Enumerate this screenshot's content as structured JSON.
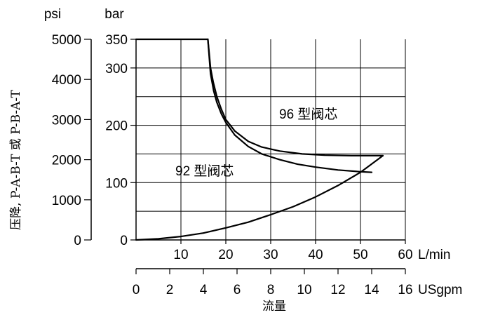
{
  "chart_data": {
    "type": "line",
    "units": {
      "psi": "psi",
      "bar": "bar",
      "lmin": "L/min",
      "usgpm": "USgpm"
    },
    "ylabel": "压降, P-A-B-T 或 P-B-A-T",
    "xlabel": "流量",
    "psi_ticks": [
      "5000",
      "4000",
      "3000",
      "2000",
      "1000",
      "0"
    ],
    "bar_ticks": [
      "350",
      "300",
      "200",
      "100",
      "0"
    ],
    "lmin_ticks": [
      "10",
      "20",
      "30",
      "40",
      "50",
      "60"
    ],
    "usgpm_ticks": [
      "0",
      "2",
      "4",
      "6",
      "8",
      "10",
      "12",
      "14",
      "16"
    ],
    "xlim_lmin": [
      0,
      60
    ],
    "ylim_bar": [
      0,
      350
    ],
    "grid": true,
    "series": [
      {
        "name": "96 型阀芯",
        "x": [
          16,
          16.6,
          17.2,
          18,
          19,
          20,
          22,
          25,
          28,
          32,
          37,
          42,
          48,
          55
        ],
        "y": [
          350,
          300,
          275,
          250,
          228,
          210,
          190,
          172,
          162,
          155,
          150,
          148,
          147,
          147
        ]
      },
      {
        "name": "92 型阀芯",
        "x": [
          16,
          16.6,
          17.3,
          18,
          19,
          20,
          22,
          25,
          28,
          32,
          36,
          40,
          45,
          50,
          52.5
        ],
        "y": [
          350,
          290,
          260,
          240,
          220,
          205,
          183,
          163,
          150,
          140,
          132,
          127,
          122,
          119,
          118
        ]
      },
      {
        "name": "",
        "x": [
          0,
          5,
          10,
          15,
          20,
          25,
          30,
          35,
          40,
          45,
          50,
          55
        ],
        "y": [
          0,
          2,
          6,
          12,
          21,
          31,
          44,
          58,
          75,
          95,
          118,
          147
        ]
      },
      {
        "name": "",
        "x": [
          0,
          16
        ],
        "y": [
          350,
          350
        ]
      }
    ]
  }
}
